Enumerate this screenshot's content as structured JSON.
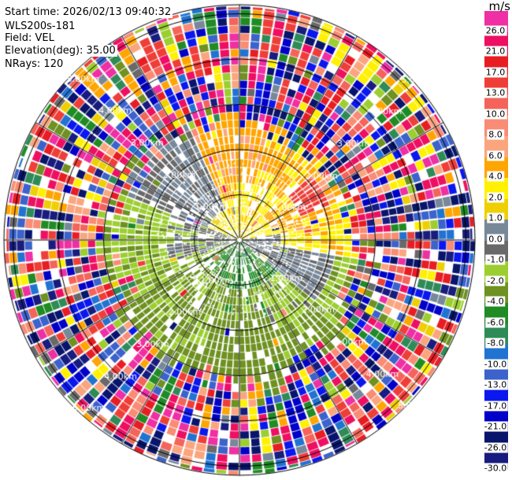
{
  "header": {
    "lines": [
      "Start time: 2026/02/13 09:40:32",
      "WLS200s-181",
      "Field: VEL",
      "Elevation(deg): 35.00",
      "NRays: 120"
    ]
  },
  "colorbar": {
    "title": "m/s",
    "boundaries": [
      30,
      26,
      21,
      17,
      13,
      10,
      8,
      6,
      4,
      2,
      1,
      0,
      -1,
      -2,
      -4,
      -6,
      -8,
      -10,
      -13,
      -17,
      -21,
      -26,
      -30
    ],
    "tick_labels": [
      "26.0",
      "21.0",
      "17.0",
      "13.0",
      "10.0",
      "8.0",
      "6.0",
      "4.0",
      "2.0",
      "1.0",
      "0.0",
      "-1.0",
      "-2.0",
      "-4.0",
      "-6.0",
      "-8.0",
      "-10.0",
      "-13.0",
      "-17.0",
      "-21.0",
      "-26.0",
      "-30.0"
    ],
    "colors_top_to_bottom": [
      "#EF2FA3",
      "#EE0F62",
      "#E81D24",
      "#EF3E38",
      "#F4645A",
      "#F98C74",
      "#FBA57F",
      "#FFA500",
      "#FFF100",
      "#EECF04",
      "#778899",
      "#696969",
      "#9CCE30",
      "#6E9121",
      "#208B24",
      "#2E8B57",
      "#2173D2",
      "#3C62CC",
      "#0A18EE",
      "#0000C8",
      "#08156B",
      "#181C7E"
    ]
  },
  "chart_data": {
    "type": "ppi-doppler-velocity-polar",
    "units": "m/s",
    "field": "VEL",
    "instrument": "WLS200s-181",
    "start_time": "2026/02/13 09:40:32",
    "elevation_deg": 35.0,
    "n_rays": 120,
    "ray_width_deg": 3,
    "gate_length_km": 0.174,
    "first_gate_km": 0.055,
    "max_range_km": 5.215,
    "range_rings_km": [
      1,
      2,
      3,
      4,
      5
    ],
    "ring_labels": [
      "1.00km",
      "2.00km",
      "3.00km",
      "4.00km",
      "5.00km"
    ],
    "ring_label_azimuths_deg": [
      45,
      135,
      225,
      315
    ],
    "spoke_interval_deg": 30,
    "grid_color": "#000000",
    "ring_label_color": "#ffffff",
    "render_seed": 20260213,
    "velocity_field": {
      "model": "azimuthal wedges; coherent inner flow (VAD-like, +N / -S), uniform spectral noise outside",
      "noise_velocity_range": [
        -30,
        30
      ],
      "transition_km": 0.24,
      "coherent_noise_fraction": 0.015,
      "spice_fraction": 0.04,
      "skip_prob_inner": 0.16,
      "skip_prob_outer": 0.06,
      "skip_prob_noise": 0.045,
      "rim_gray": {
        "az": [
          195,
          245
        ],
        "prob": 0.35,
        "v": [
          -0.8,
          0.8
        ]
      },
      "wedges": [
        {
          "az": [
            350,
            374
          ],
          "extent_km": 2.6,
          "bands": [
            [
              0,
              0.35,
              2.5,
              5.5
            ],
            [
              0.35,
              1.2,
              2.2,
              4.2
            ],
            [
              1.2,
              2.6,
              4.3,
              6.3
            ]
          ]
        },
        {
          "az": [
            14,
            48
          ],
          "extent_km": 2.45,
          "bands": [
            [
              0,
              1.3,
              2.2,
              4.4
            ],
            [
              1.3,
              2.45,
              3.4,
              5.6
            ]
          ]
        },
        {
          "az": [
            48,
            68
          ],
          "extent_km": 2.35,
          "bands": [
            [
              0,
              0.75,
              2.0,
              4.2
            ],
            [
              0.75,
              1.45,
              3.4,
              6.2
            ],
            [
              1.45,
              2.15,
              12.5,
              16.5
            ],
            [
              2.15,
              2.35,
              4.0,
              7.0
            ]
          ]
        },
        {
          "az": [
            68,
            82
          ],
          "extent_km": 2.35,
          "bands": [
            [
              0,
              1.0,
              2.0,
              4.2
            ],
            [
              1.0,
              2.35,
              3.0,
              5.5
            ]
          ]
        },
        {
          "az": [
            82,
            99
          ],
          "extent_km": 2.5,
          "bands": [
            [
              0,
              0.95,
              -0.8,
              0.8
            ],
            [
              0.95,
              2.5,
              2.2,
              4.4
            ]
          ]
        },
        {
          "az": [
            99,
            130
          ],
          "extent_km": 2.6,
          "bands": [
            [
              0,
              2.2,
              -0.9,
              0.9
            ],
            [
              2.2,
              2.6,
              -2.6,
              -1.2
            ]
          ]
        },
        {
          "az": [
            130,
            160
          ],
          "extent_km": 3.0,
          "bands": [
            [
              0,
              1.15,
              -5.8,
              -3.6
            ],
            [
              1.15,
              2.1,
              -2.4,
              -0.9
            ],
            [
              2.1,
              3.0,
              -3.6,
              -1.6
            ]
          ]
        },
        {
          "az": [
            160,
            196
          ],
          "extent_km": 3.15,
          "bands": [
            [
              0,
              1.15,
              -6.2,
              -4.2
            ],
            [
              1.15,
              2.05,
              -4.2,
              -1.6
            ],
            [
              2.05,
              3.15,
              -3.8,
              -2.0
            ]
          ]
        },
        {
          "az": [
            196,
            240
          ],
          "extent_km": 3.05,
          "bands": [
            [
              0,
              0.85,
              -6.0,
              -3.6
            ],
            [
              0.85,
              3.05,
              -3.6,
              -1.6
            ]
          ]
        },
        {
          "az": [
            240,
            252
          ],
          "extent_km": 2.75,
          "bands": [
            [
              0,
              0.6,
              -1.8,
              -0.3
            ],
            [
              0.6,
              2.75,
              -3.4,
              -1.0
            ]
          ]
        },
        {
          "az": [
            252,
            292
          ],
          "extent_km": 2.95,
          "bands": [
            [
              0,
              0.55,
              -1.2,
              0.6
            ],
            [
              0.55,
              1.6,
              -1.6,
              0.4
            ],
            [
              1.6,
              2.95,
              -2.3,
              -1.1
            ]
          ]
        },
        {
          "az": [
            292,
            336
          ],
          "extent_km": 2.7,
          "bands": [
            [
              0,
              0.7,
              1.6,
              3.6
            ],
            [
              0.7,
              2.7,
              -0.9,
              0.9
            ]
          ]
        },
        {
          "az": [
            336,
            350
          ],
          "extent_km": 2.6,
          "bands": [
            [
              0,
              0.9,
              2.2,
              5.3
            ],
            [
              0.9,
              2.6,
              3.8,
              6.2
            ]
          ]
        }
      ]
    }
  }
}
